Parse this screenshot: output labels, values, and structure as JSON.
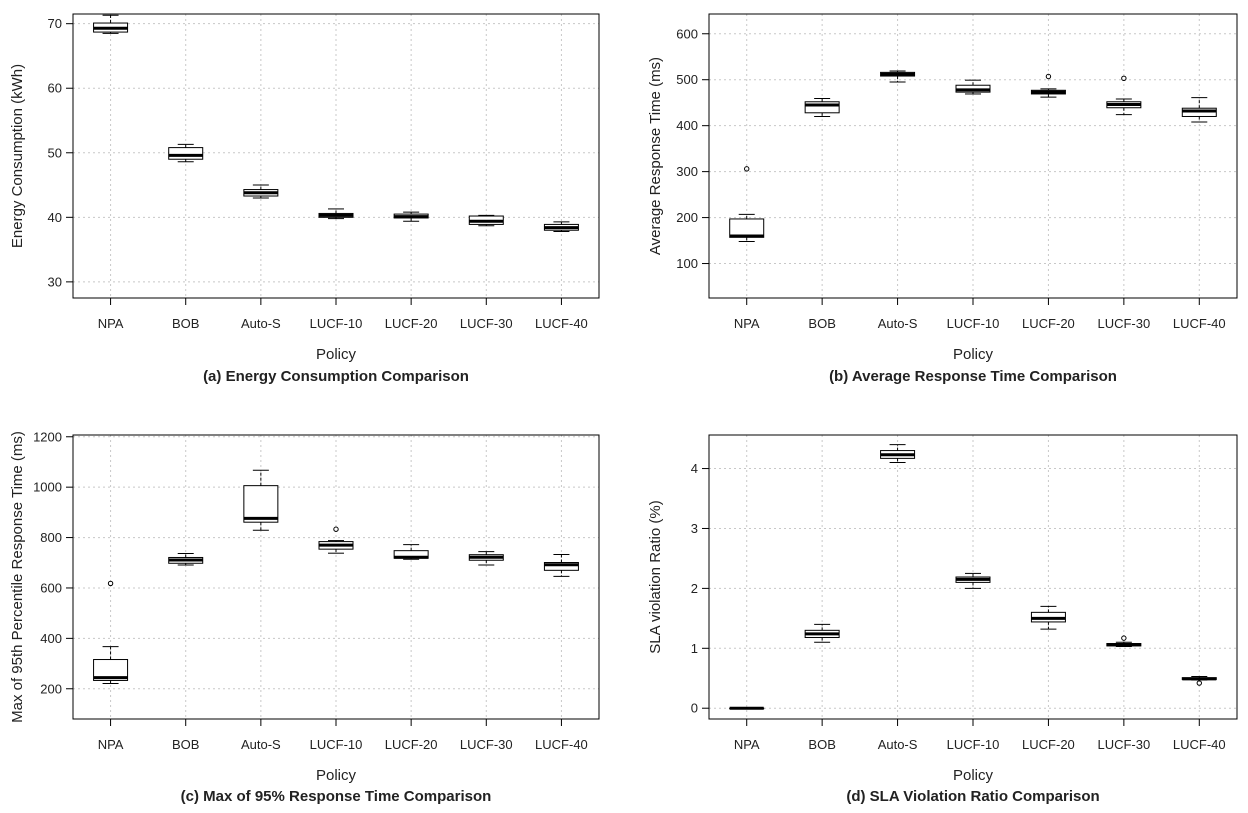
{
  "chart_data": [
    {
      "type": "boxplot",
      "caption": "(a) Energy Consumption Comparison",
      "xlabel": "Policy",
      "ylabel": "Energy Consumption (kWh)",
      "categories": [
        "NPA",
        "BOB",
        "Auto-S",
        "LUCF-10",
        "LUCF-20",
        "LUCF-30",
        "LUCF-40"
      ],
      "ylim": [
        27.5,
        71.5
      ],
      "yticks": [
        30,
        40,
        50,
        60,
        70
      ],
      "grid": true,
      "boxes": [
        {
          "whisker_low": 68.5,
          "q1": 68.7,
          "median": 69.3,
          "q3": 70.1,
          "whisker_high": 71.3,
          "outliers": []
        },
        {
          "whisker_low": 48.6,
          "q1": 49.0,
          "median": 49.6,
          "q3": 50.8,
          "whisker_high": 51.3,
          "outliers": []
        },
        {
          "whisker_low": 43.0,
          "q1": 43.3,
          "median": 43.8,
          "q3": 44.3,
          "whisker_high": 45.0,
          "outliers": []
        },
        {
          "whisker_low": 39.8,
          "q1": 40.0,
          "median": 40.3,
          "q3": 40.6,
          "whisker_high": 41.3,
          "outliers": []
        },
        {
          "whisker_low": 39.4,
          "q1": 39.9,
          "median": 40.1,
          "q3": 40.5,
          "whisker_high": 40.8,
          "outliers": []
        },
        {
          "whisker_low": 38.7,
          "q1": 38.9,
          "median": 39.4,
          "q3": 40.2,
          "whisker_high": 40.3,
          "outliers": []
        },
        {
          "whisker_low": 37.8,
          "q1": 38.0,
          "median": 38.4,
          "q3": 38.9,
          "whisker_high": 39.3,
          "outliers": []
        }
      ]
    },
    {
      "type": "boxplot",
      "caption": "(b) Average Response Time Comparison",
      "xlabel": "Policy",
      "ylabel": "Average Response Time (ms)",
      "categories": [
        "NPA",
        "BOB",
        "Auto-S",
        "LUCF-10",
        "LUCF-20",
        "LUCF-30",
        "LUCF-40"
      ],
      "ylim": [
        25,
        643
      ],
      "yticks": [
        100,
        200,
        300,
        400,
        500,
        600
      ],
      "grid": true,
      "boxes": [
        {
          "whisker_low": 148,
          "q1": 157,
          "median": 160,
          "q3": 197,
          "whisker_high": 207,
          "outliers": [
            306
          ]
        },
        {
          "whisker_low": 420,
          "q1": 428,
          "median": 445,
          "q3": 452,
          "whisker_high": 459,
          "outliers": []
        },
        {
          "whisker_low": 495,
          "q1": 508,
          "median": 512,
          "q3": 516,
          "whisker_high": 519,
          "outliers": []
        },
        {
          "whisker_low": 469,
          "q1": 473,
          "median": 478,
          "q3": 488,
          "whisker_high": 499,
          "outliers": []
        },
        {
          "whisker_low": 462,
          "q1": 469,
          "median": 473,
          "q3": 477,
          "whisker_high": 480,
          "outliers": [
            507
          ]
        },
        {
          "whisker_low": 424,
          "q1": 439,
          "median": 446,
          "q3": 452,
          "whisker_high": 458,
          "outliers": [
            503
          ]
        },
        {
          "whisker_low": 408,
          "q1": 420,
          "median": 432,
          "q3": 438,
          "whisker_high": 461,
          "outliers": []
        }
      ]
    },
    {
      "type": "boxplot",
      "caption": "(c) Max of 95% Response Time Comparison",
      "xlabel": "Policy",
      "ylabel": "Max of 95th Percentile Response Time (ms)",
      "categories": [
        "NPA",
        "BOB",
        "Auto-S",
        "LUCF-10",
        "LUCF-20",
        "LUCF-30",
        "LUCF-40"
      ],
      "ylim": [
        80,
        1207
      ],
      "yticks": [
        200,
        400,
        600,
        800,
        1000,
        1200
      ],
      "grid": true,
      "boxes": [
        {
          "whisker_low": 221,
          "q1": 233,
          "median": 244,
          "q3": 316,
          "whisker_high": 367,
          "outliers": [
            618
          ]
        },
        {
          "whisker_low": 691,
          "q1": 698,
          "median": 711,
          "q3": 721,
          "whisker_high": 737,
          "outliers": []
        },
        {
          "whisker_low": 829,
          "q1": 861,
          "median": 876,
          "q3": 1006,
          "whisker_high": 1067,
          "outliers": []
        },
        {
          "whisker_low": 738,
          "q1": 754,
          "median": 770,
          "q3": 784,
          "whisker_high": 788,
          "outliers": [
            833
          ]
        },
        {
          "whisker_low": 714,
          "q1": 718,
          "median": 722,
          "q3": 748,
          "whisker_high": 772,
          "outliers": []
        },
        {
          "whisker_low": 691,
          "q1": 710,
          "median": 722,
          "q3": 732,
          "whisker_high": 744,
          "outliers": []
        },
        {
          "whisker_low": 646,
          "q1": 670,
          "median": 692,
          "q3": 701,
          "whisker_high": 733,
          "outliers": []
        }
      ]
    },
    {
      "type": "boxplot",
      "caption": "(d) SLA Violation Ratio Comparison",
      "xlabel": "Policy",
      "ylabel": "SLA violation Ratio (%)",
      "categories": [
        "NPA",
        "BOB",
        "Auto-S",
        "LUCF-10",
        "LUCF-20",
        "LUCF-30",
        "LUCF-40"
      ],
      "ylim": [
        -0.18,
        4.56
      ],
      "yticks": [
        0,
        1,
        2,
        3,
        4
      ],
      "grid": true,
      "boxes": [
        {
          "whisker_low": 0.0,
          "q1": 0.0,
          "median": 0.0,
          "q3": 0.0,
          "whisker_high": 0.0,
          "outliers": []
        },
        {
          "whisker_low": 1.1,
          "q1": 1.18,
          "median": 1.24,
          "q3": 1.3,
          "whisker_high": 1.4,
          "outliers": []
        },
        {
          "whisker_low": 4.1,
          "q1": 4.17,
          "median": 4.23,
          "q3": 4.3,
          "whisker_high": 4.4,
          "outliers": []
        },
        {
          "whisker_low": 2.0,
          "q1": 2.1,
          "median": 2.15,
          "q3": 2.19,
          "whisker_high": 2.25,
          "outliers": []
        },
        {
          "whisker_low": 1.32,
          "q1": 1.44,
          "median": 1.5,
          "q3": 1.6,
          "whisker_high": 1.7,
          "outliers": []
        },
        {
          "whisker_low": 1.03,
          "q1": 1.04,
          "median": 1.06,
          "q3": 1.08,
          "whisker_high": 1.1,
          "outliers": [
            1.17
          ]
        },
        {
          "whisker_low": 0.47,
          "q1": 0.48,
          "median": 0.49,
          "q3": 0.51,
          "whisker_high": 0.53,
          "outliers": [
            0.42
          ]
        }
      ]
    }
  ]
}
